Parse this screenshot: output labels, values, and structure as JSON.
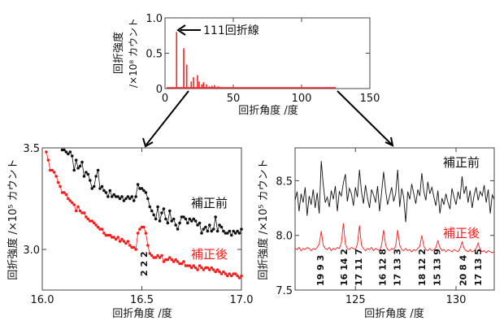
{
  "colors": {
    "before": "#111111",
    "after": "#ff1a1a",
    "overview": "#ff2020"
  },
  "chart_data": [
    {
      "type": "bar",
      "ylabel_line1": "回折強度",
      "ylabel_line2": "/×10⁸ カウント",
      "xlabel": "回折角度 /度",
      "xlim": [
        0,
        150
      ],
      "ylim": [
        0,
        1.0
      ],
      "xticks": [
        "0",
        "50",
        "100",
        "150"
      ],
      "yticks": [
        "0",
        "0.5",
        "1.0"
      ],
      "annotation": "111回折線",
      "x": [
        8.5,
        13.7,
        15.9,
        19.2,
        20.8,
        23.8,
        25.0,
        27.0,
        28.2,
        30.3,
        32.5,
        34.5,
        36.2,
        39.0,
        41.0,
        43.7
      ],
      "values": [
        0.8,
        0.57,
        0.34,
        0.1,
        0.16,
        0.19,
        0.1,
        0.06,
        0.09,
        0.06,
        0.03,
        0.04,
        0.05,
        0.03,
        0.02,
        0.01
      ]
    },
    {
      "type": "line",
      "ylabel": "回折強度 /×10⁵ カウント",
      "xlabel": "回折角度 /度",
      "xlim": [
        16.0,
        17.0
      ],
      "ylim": [
        2.8,
        3.5
      ],
      "xticks": [
        "16.0",
        "16.5",
        "17.0"
      ],
      "yticks": [
        "3.0",
        "3.5"
      ],
      "peak_label": "2 2 2",
      "series": [
        {
          "name": "補正前",
          "x": [
            16.1,
            16.11,
            16.12,
            16.13,
            16.14,
            16.15,
            16.16,
            16.17,
            16.18,
            16.19,
            16.2,
            16.21,
            16.22,
            16.23,
            16.24,
            16.25,
            16.26,
            16.27,
            16.28,
            16.29,
            16.3,
            16.31,
            16.32,
            16.33,
            16.34,
            16.35,
            16.36,
            16.37,
            16.38,
            16.39,
            16.4,
            16.41,
            16.42,
            16.43,
            16.44,
            16.45,
            16.46,
            16.47,
            16.48,
            16.49,
            16.5,
            16.51,
            16.52,
            16.53,
            16.54,
            16.55,
            16.56,
            16.57,
            16.58,
            16.59,
            16.6,
            16.61,
            16.62,
            16.63,
            16.64,
            16.65,
            16.66,
            16.67,
            16.68,
            16.69,
            16.7,
            16.71,
            16.72,
            16.73,
            16.74,
            16.75,
            16.76,
            16.77,
            16.78,
            16.79,
            16.8,
            16.81,
            16.82,
            16.83,
            16.84,
            16.85,
            16.86,
            16.87,
            16.88,
            16.89,
            16.9,
            16.91,
            16.92,
            16.93,
            16.94,
            16.95,
            16.96,
            16.97,
            16.98,
            16.99,
            17.0
          ],
          "values": [
            3.49,
            3.49,
            3.48,
            3.47,
            3.48,
            3.46,
            3.39,
            3.44,
            3.4,
            3.41,
            3.43,
            3.36,
            3.38,
            3.37,
            3.34,
            3.3,
            3.31,
            3.36,
            3.39,
            3.3,
            3.31,
            3.29,
            3.28,
            3.26,
            3.29,
            3.26,
            3.27,
            3.26,
            3.26,
            3.25,
            3.26,
            3.24,
            3.25,
            3.26,
            3.25,
            3.26,
            3.24,
            3.26,
            3.32,
            3.3,
            3.3,
            3.29,
            3.28,
            3.25,
            3.21,
            3.19,
            3.17,
            3.15,
            3.21,
            3.14,
            3.18,
            3.2,
            3.15,
            3.13,
            3.19,
            3.14,
            3.15,
            3.12,
            3.1,
            3.13,
            3.16,
            3.16,
            3.15,
            3.13,
            3.15,
            3.14,
            3.15,
            3.14,
            3.12,
            3.13,
            3.08,
            3.1,
            3.11,
            3.09,
            3.12,
            3.09,
            3.1,
            3.16,
            3.09,
            3.12,
            3.11,
            3.09,
            3.08,
            3.08,
            3.09,
            3.07,
            3.09,
            3.08,
            3.09,
            3.08,
            3.1
          ]
        },
        {
          "name": "補正後",
          "x": [
            16.02,
            16.03,
            16.04,
            16.05,
            16.06,
            16.07,
            16.08,
            16.09,
            16.1,
            16.11,
            16.12,
            16.13,
            16.14,
            16.15,
            16.16,
            16.17,
            16.18,
            16.19,
            16.2,
            16.21,
            16.22,
            16.23,
            16.24,
            16.25,
            16.26,
            16.27,
            16.28,
            16.29,
            16.3,
            16.31,
            16.32,
            16.33,
            16.34,
            16.35,
            16.36,
            16.37,
            16.38,
            16.39,
            16.4,
            16.41,
            16.42,
            16.43,
            16.44,
            16.45,
            16.46,
            16.47,
            16.48,
            16.49,
            16.5,
            16.51,
            16.52,
            16.53,
            16.54,
            16.55,
            16.56,
            16.57,
            16.58,
            16.59,
            16.6,
            16.61,
            16.62,
            16.63,
            16.64,
            16.65,
            16.66,
            16.67,
            16.68,
            16.69,
            16.7,
            16.71,
            16.72,
            16.73,
            16.74,
            16.75,
            16.76,
            16.77,
            16.78,
            16.79,
            16.8,
            16.81,
            16.82,
            16.83,
            16.84,
            16.85,
            16.86,
            16.87,
            16.88,
            16.89,
            16.9,
            16.91,
            16.92,
            16.93,
            16.94,
            16.95,
            16.96,
            16.97,
            16.98,
            16.99,
            17.0
          ],
          "values": [
            3.48,
            3.44,
            3.39,
            3.39,
            3.38,
            3.36,
            3.33,
            3.31,
            3.28,
            3.28,
            3.27,
            3.25,
            3.24,
            3.23,
            3.22,
            3.19,
            3.21,
            3.19,
            3.18,
            3.18,
            3.16,
            3.15,
            3.14,
            3.14,
            3.13,
            3.12,
            3.11,
            3.1,
            3.1,
            3.08,
            3.07,
            3.07,
            3.07,
            3.06,
            3.06,
            3.05,
            3.06,
            3.04,
            3.05,
            3.04,
            3.03,
            3.04,
            3.02,
            3.01,
            3.01,
            3.0,
            3.08,
            3.1,
            3.11,
            3.11,
            3.08,
            3.02,
            2.98,
            2.97,
            2.96,
            2.96,
            2.97,
            2.96,
            2.97,
            2.94,
            2.95,
            2.95,
            2.96,
            2.95,
            2.94,
            2.95,
            2.94,
            2.93,
            2.93,
            2.94,
            2.92,
            2.92,
            2.92,
            2.91,
            2.92,
            2.91,
            2.9,
            2.92,
            2.91,
            2.9,
            2.91,
            2.91,
            2.9,
            2.91,
            2.9,
            2.89,
            2.9,
            2.89,
            2.88,
            2.89,
            2.88,
            2.87,
            2.88,
            2.87,
            2.88,
            2.88,
            2.87,
            2.86,
            2.87
          ]
        }
      ]
    },
    {
      "type": "line",
      "ylabel": "回折強度 /×10⁵ カウント",
      "xlabel": "回折角度 /度",
      "xlim": [
        122.0,
        131.9
      ],
      "ylim": [
        7.5,
        8.8
      ],
      "xticks": [
        "125",
        "130"
      ],
      "yticks": [
        "7.5",
        "8.0",
        "8.5"
      ],
      "peak_labels": [
        {
          "x": 123.25,
          "label": "19 9 3"
        },
        {
          "x": 124.43,
          "label": "16 14 2"
        },
        {
          "x": 125.15,
          "label": "17 11 7"
        },
        {
          "x": 126.35,
          "label": "16 12 8"
        },
        {
          "x": 127.08,
          "label": "17 13 3"
        },
        {
          "x": 128.3,
          "label": "18 12 2"
        },
        {
          "x": 129.06,
          "label": "15 13 9"
        },
        {
          "x": 130.34,
          "label": "20 8 4"
        },
        {
          "x": 131.1,
          "label": "17 13 5"
        }
      ],
      "x": [
        122.0,
        122.1,
        122.2,
        122.3,
        122.4,
        122.5,
        122.6,
        122.7,
        122.8,
        122.9,
        123.0,
        123.1,
        123.2,
        123.3,
        123.4,
        123.5,
        123.6,
        123.7,
        123.8,
        123.9,
        124.0,
        124.1,
        124.2,
        124.3,
        124.4,
        124.5,
        124.6,
        124.7,
        124.8,
        124.9,
        125.0,
        125.1,
        125.2,
        125.3,
        125.4,
        125.5,
        125.6,
        125.7,
        125.8,
        125.9,
        126.0,
        126.1,
        126.2,
        126.3,
        126.4,
        126.5,
        126.6,
        126.7,
        126.8,
        126.9,
        127.0,
        127.1,
        127.2,
        127.3,
        127.4,
        127.5,
        127.6,
        127.7,
        127.8,
        127.9,
        128.0,
        128.1,
        128.2,
        128.3,
        128.4,
        128.5,
        128.6,
        128.7,
        128.8,
        128.9,
        129.0,
        129.1,
        129.2,
        129.3,
        129.4,
        129.5,
        129.6,
        129.7,
        129.8,
        129.9,
        130.0,
        130.1,
        130.2,
        130.3,
        130.4,
        130.5,
        130.6,
        130.7,
        130.8,
        130.9,
        131.0,
        131.1,
        131.2,
        131.3,
        131.4,
        131.5,
        131.6,
        131.7,
        131.8,
        131.9
      ],
      "series": [
        {
          "name": "補正前",
          "values": [
            8.32,
            8.4,
            8.22,
            8.38,
            8.3,
            8.44,
            8.18,
            8.36,
            8.28,
            8.42,
            8.25,
            8.39,
            8.2,
            8.68,
            8.47,
            8.3,
            8.35,
            8.26,
            8.41,
            8.33,
            8.45,
            8.22,
            8.4,
            8.36,
            8.48,
            8.56,
            8.31,
            8.43,
            8.38,
            8.27,
            8.44,
            8.35,
            8.6,
            8.4,
            8.29,
            8.46,
            8.34,
            8.25,
            8.42,
            8.37,
            8.3,
            8.45,
            8.22,
            8.39,
            8.58,
            8.41,
            8.28,
            8.36,
            8.44,
            8.31,
            8.38,
            8.6,
            8.26,
            8.43,
            8.35,
            8.12,
            8.4,
            8.33,
            8.47,
            8.38,
            8.29,
            8.42,
            8.36,
            8.57,
            8.4,
            8.32,
            8.49,
            8.38,
            8.44,
            8.35,
            8.27,
            8.41,
            8.2,
            8.34,
            8.28,
            8.38,
            8.3,
            8.24,
            8.43,
            8.35,
            8.28,
            8.4,
            8.33,
            8.54,
            8.38,
            8.45,
            8.3,
            8.41,
            8.25,
            8.37,
            8.44,
            8.32,
            8.4,
            8.36,
            8.46,
            8.3,
            8.42,
            8.2,
            8.37,
            8.33
          ]
        },
        {
          "name": "補正後",
          "values": [
            7.88,
            7.87,
            7.89,
            7.86,
            7.88,
            7.87,
            7.89,
            7.88,
            7.86,
            7.88,
            7.87,
            7.89,
            7.92,
            8.04,
            7.91,
            7.88,
            7.87,
            7.89,
            7.86,
            7.88,
            7.87,
            7.89,
            7.88,
            7.93,
            8.11,
            7.92,
            7.88,
            7.87,
            7.89,
            7.88,
            7.87,
            7.92,
            8.09,
            7.91,
            7.88,
            7.86,
            7.88,
            7.87,
            7.89,
            7.86,
            7.88,
            7.87,
            7.86,
            7.91,
            8.05,
            7.91,
            7.87,
            7.86,
            7.88,
            7.87,
            7.9,
            8.05,
            7.91,
            7.87,
            7.86,
            7.88,
            7.86,
            7.87,
            7.85,
            7.87,
            7.86,
            7.88,
            7.9,
            8.0,
            7.9,
            7.87,
            7.86,
            7.88,
            7.86,
            7.87,
            7.89,
            7.95,
            7.89,
            7.86,
            7.87,
            7.85,
            7.87,
            7.86,
            7.85,
            7.87,
            7.86,
            7.85,
            7.88,
            7.94,
            7.88,
            7.86,
            7.85,
            7.87,
            7.85,
            7.86,
            7.88,
            7.93,
            7.87,
            7.85,
            7.86,
            7.84,
            7.86,
            7.85,
            7.84,
            7.85
          ]
        }
      ]
    }
  ]
}
